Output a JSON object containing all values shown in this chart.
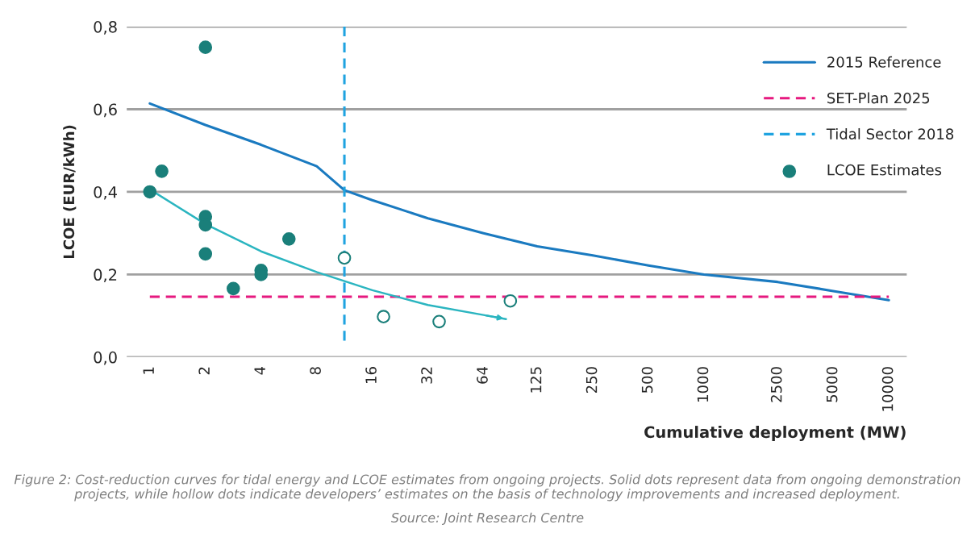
{
  "chart_data": {
    "type": "line",
    "xlabel": "Cumulative deployment (MW)",
    "ylabel": "LCOE (EUR/kWh)",
    "log": "x",
    "xlim": [
      0.75,
      12500
    ],
    "ylim": [
      0,
      0.8
    ],
    "xticks": [
      1,
      2,
      4,
      8,
      16,
      32,
      64,
      125,
      250,
      500,
      1000,
      2500,
      5000,
      10000
    ],
    "yticks": [
      {
        "value": 0,
        "label": "0,0"
      },
      {
        "value": 0.2,
        "label": "0,2"
      },
      {
        "value": 0.4,
        "label": "0,4"
      },
      {
        "value": 0.6,
        "label": "0,6"
      },
      {
        "value": 0.8,
        "label": "0,8"
      }
    ],
    "grid": "y",
    "legend": "right",
    "series": [
      {
        "name": "2015 Reference",
        "color": "#1a7ac0",
        "line_style": "solid",
        "x": [
          1,
          2,
          4,
          8,
          11.3,
          16,
          32,
          64,
          125,
          250,
          500,
          1000,
          2500,
          5000,
          10000
        ],
        "values": [
          0.614,
          0.562,
          0.514,
          0.462,
          0.404,
          0.38,
          0.336,
          0.3,
          0.268,
          0.246,
          0.222,
          0.2,
          0.182,
          0.16,
          0.138
        ]
      },
      {
        "name": "SET-Plan 2025",
        "color": "#e6197f",
        "line_style": "dashed",
        "x": [
          1,
          10000
        ],
        "values": [
          0.146,
          0.146
        ]
      },
      {
        "name": "Tidal Sector 2018",
        "color": "#1fa3e0",
        "line_style": "dashed",
        "x": [
          11.3,
          11.3
        ],
        "values": [
          0.04,
          0.8
        ]
      },
      {
        "type": "scatter",
        "name": "LCOE Estimates",
        "color": "#1a7f7a",
        "marker": "circle",
        "x": [
          1,
          1.16,
          2,
          2,
          2,
          2,
          2.83,
          4,
          4,
          5.66
        ],
        "values": [
          0.4,
          0.45,
          0.75,
          0.34,
          0.32,
          0.25,
          0.166,
          0.21,
          0.2,
          0.286
        ]
      },
      {
        "type": "scatter",
        "color": "#1a7f7a",
        "marker": "circle",
        "x": [
          11.3,
          18.4,
          36.8,
          89.4
        ],
        "values": [
          0.24,
          0.098,
          0.086,
          0.136
        ]
      },
      {
        "color": "#2bb5c0",
        "line_style": "solid",
        "x": [
          1,
          2,
          4,
          8,
          16,
          32,
          64,
          84.7
        ],
        "values": [
          0.406,
          0.322,
          0.256,
          0.206,
          0.162,
          0.126,
          0.102,
          0.092
        ]
      }
    ],
    "annotations": [
      "Figure 2: Cost-reduction curves for tidal energy and LCOE estimates from ongoing projects. Solid dots represent data from ongoing demonstration projects, while hollow dots indicate developers’ estimates on the basis of technology improvements and increased deployment.",
      "Source: Joint Research Centre"
    ]
  }
}
